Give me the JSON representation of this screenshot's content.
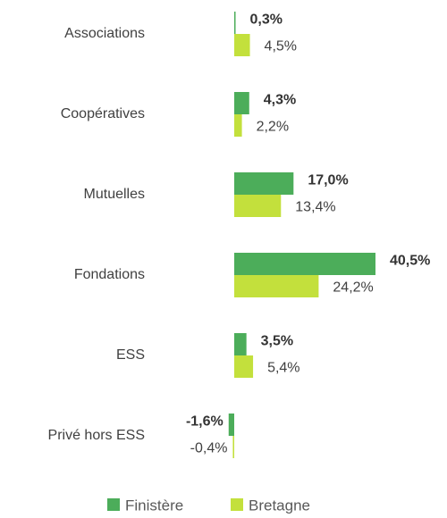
{
  "chart_data": {
    "type": "bar",
    "orientation": "horizontal",
    "categories": [
      "Associations",
      "Coopératives",
      "Mutuelles",
      "Fondations",
      "ESS",
      "Privé hors ESS"
    ],
    "series": [
      {
        "name": "Finistère",
        "color": "#4cad5a",
        "values": [
          0.3,
          4.3,
          17.0,
          40.5,
          3.5,
          -1.6
        ],
        "value_labels": [
          "0,3%",
          "4,3%",
          "17,0%",
          "40,5%",
          "3,5%",
          "-1,6%"
        ]
      },
      {
        "name": "Bretagne",
        "color": "#c3e03c",
        "values": [
          4.5,
          2.2,
          13.4,
          24.2,
          5.4,
          -0.4
        ],
        "value_labels": [
          "4,5%",
          "2,2%",
          "13,4%",
          "24,2%",
          "5,4%",
          "-0,4%"
        ]
      }
    ],
    "legend": "bottom"
  }
}
